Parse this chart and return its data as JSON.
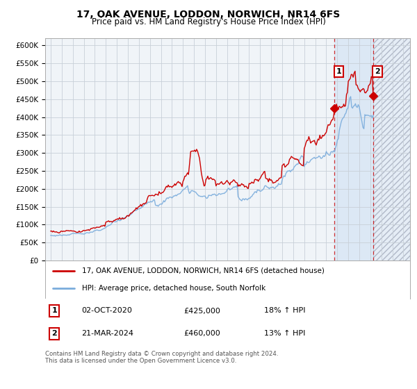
{
  "title": "17, OAK AVENUE, LODDON, NORWICH, NR14 6FS",
  "subtitle": "Price paid vs. HM Land Registry's House Price Index (HPI)",
  "title_fontsize": 10,
  "subtitle_fontsize": 8.5,
  "background_color": "#ffffff",
  "plot_bg_color": "#f0f4f8",
  "grid_color": "#c8d0d8",
  "red_color": "#cc0000",
  "blue_color": "#7aacdc",
  "shade_color": "#dce8f5",
  "legend_label_red": "17, OAK AVENUE, LODDON, NORWICH, NR14 6FS (detached house)",
  "legend_label_blue": "HPI: Average price, detached house, South Norfolk",
  "annotation1_num": "1",
  "annotation1_date": "02-OCT-2020",
  "annotation1_price": "£425,000",
  "annotation1_hpi": "18% ↑ HPI",
  "annotation2_num": "2",
  "annotation2_date": "21-MAR-2024",
  "annotation2_price": "£460,000",
  "annotation2_hpi": "13% ↑ HPI",
  "footnote": "Contains HM Land Registry data © Crown copyright and database right 2024.\nThis data is licensed under the Open Government Licence v3.0.",
  "ylim": [
    0,
    620000
  ],
  "yticks": [
    0,
    50000,
    100000,
    150000,
    200000,
    250000,
    300000,
    350000,
    400000,
    450000,
    500000,
    550000,
    600000
  ],
  "ytick_labels": [
    "£0",
    "£50K",
    "£100K",
    "£150K",
    "£200K",
    "£250K",
    "£300K",
    "£350K",
    "£400K",
    "£450K",
    "£500K",
    "£550K",
    "£600K"
  ],
  "marker1_year": 2020.75,
  "marker1_y": 425000,
  "marker2_year": 2024.25,
  "marker2_y": 460000,
  "shade_start": 2020.75,
  "shade_end": 2024.25,
  "hatch_start": 2024.25,
  "hatch_end": 2027.6,
  "xlim_start": 1994.5,
  "xlim_end": 2027.6
}
